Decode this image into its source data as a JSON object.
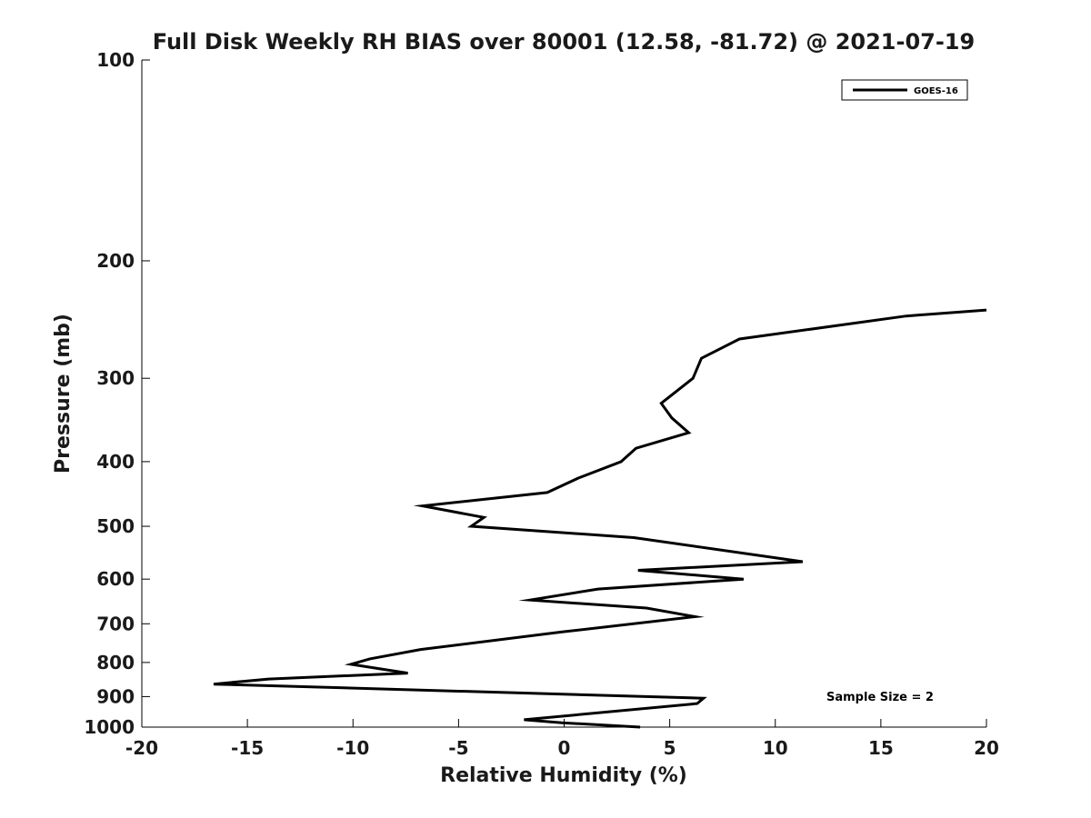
{
  "chart_data": {
    "type": "line",
    "title": "Full Disk Weekly RH BIAS over 80001 (12.58, -81.72) @ 2021-07-19",
    "xlabel": "Relative Humidity (%)",
    "ylabel": "Pressure (mb)",
    "xlim": [
      -20,
      20
    ],
    "ylim": [
      100,
      1000
    ],
    "yscale": "log",
    "y_reversed": true,
    "grid": false,
    "legend_placement": "top-right",
    "x_ticks": [
      -20,
      -15,
      -10,
      -5,
      0,
      5,
      10,
      15,
      20
    ],
    "x_tick_labels": [
      "-20",
      "-15",
      "-10",
      "-5",
      "0",
      "5",
      "10",
      "15",
      "20"
    ],
    "y_ticks": [
      100,
      200,
      300,
      400,
      500,
      600,
      700,
      800,
      900,
      1000
    ],
    "y_tick_labels": [
      "100",
      "200",
      "300",
      "400",
      "500",
      "600",
      "700",
      "800",
      "900",
      "1000"
    ],
    "annotation": "Sample Size = 2",
    "series": [
      {
        "name": "GOES-16",
        "color": "#000000",
        "points": [
          {
            "x": 3.6,
            "y": 1000
          },
          {
            "x": -0.1,
            "y": 985
          },
          {
            "x": -1.9,
            "y": 975
          },
          {
            "x": 6.3,
            "y": 922
          },
          {
            "x": 6.6,
            "y": 905
          },
          {
            "x": -16.6,
            "y": 862
          },
          {
            "x": -14.0,
            "y": 847
          },
          {
            "x": -7.4,
            "y": 830
          },
          {
            "x": -10.1,
            "y": 805
          },
          {
            "x": -9.2,
            "y": 790
          },
          {
            "x": -6.8,
            "y": 765
          },
          {
            "x": -0.1,
            "y": 720
          },
          {
            "x": 6.2,
            "y": 683
          },
          {
            "x": 3.9,
            "y": 663
          },
          {
            "x": -1.6,
            "y": 645
          },
          {
            "x": 1.6,
            "y": 621
          },
          {
            "x": 8.5,
            "y": 600
          },
          {
            "x": 3.5,
            "y": 582
          },
          {
            "x": 11.3,
            "y": 565
          },
          {
            "x": 3.3,
            "y": 520
          },
          {
            "x": -4.4,
            "y": 500
          },
          {
            "x": -3.8,
            "y": 485
          },
          {
            "x": -6.7,
            "y": 466
          },
          {
            "x": -0.8,
            "y": 445
          },
          {
            "x": 0.7,
            "y": 423
          },
          {
            "x": 2.7,
            "y": 400
          },
          {
            "x": 3.4,
            "y": 382
          },
          {
            "x": 5.9,
            "y": 362
          },
          {
            "x": 5.1,
            "y": 344
          },
          {
            "x": 4.6,
            "y": 327
          },
          {
            "x": 6.1,
            "y": 300
          },
          {
            "x": 6.5,
            "y": 280
          },
          {
            "x": 8.3,
            "y": 262
          },
          {
            "x": 16.2,
            "y": 242
          },
          {
            "x": 20.0,
            "y": 237
          }
        ]
      }
    ]
  }
}
